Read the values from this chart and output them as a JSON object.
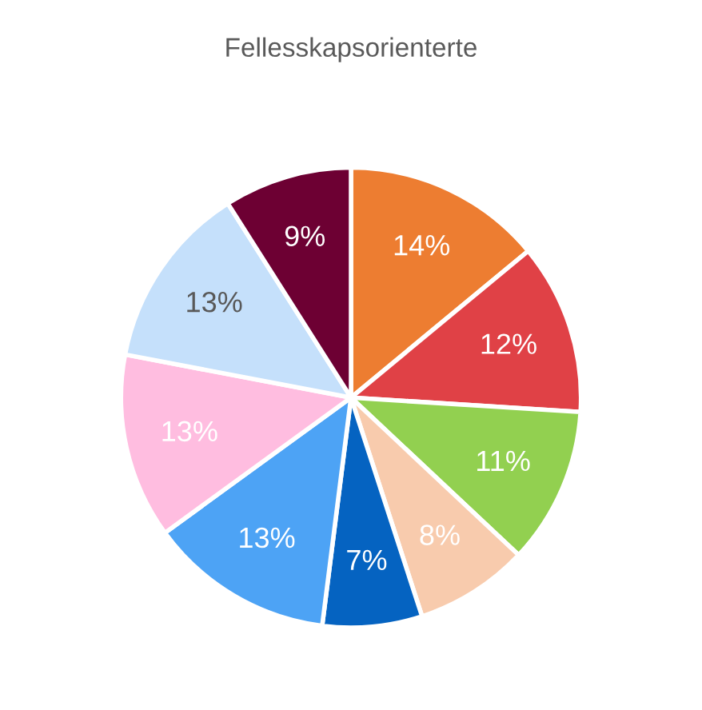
{
  "chart_data": {
    "type": "pie",
    "title": "Fellesskapsorienterte",
    "categories": [
      null,
      null,
      null,
      null,
      null,
      null,
      null,
      null,
      null
    ],
    "values": [
      14,
      12,
      11,
      8,
      7,
      13,
      13,
      13,
      9
    ],
    "value_labels": [
      "14%",
      "12%",
      "11%",
      "8%",
      "7%",
      "13%",
      "13%",
      "13%",
      "9%"
    ],
    "colors": [
      "#ed7d31",
      "#e04146",
      "#92d050",
      "#f8cbad",
      "#0563c1",
      "#4da3f5",
      "#ffbde0",
      "#c5e0fb",
      "#6d0033"
    ]
  }
}
